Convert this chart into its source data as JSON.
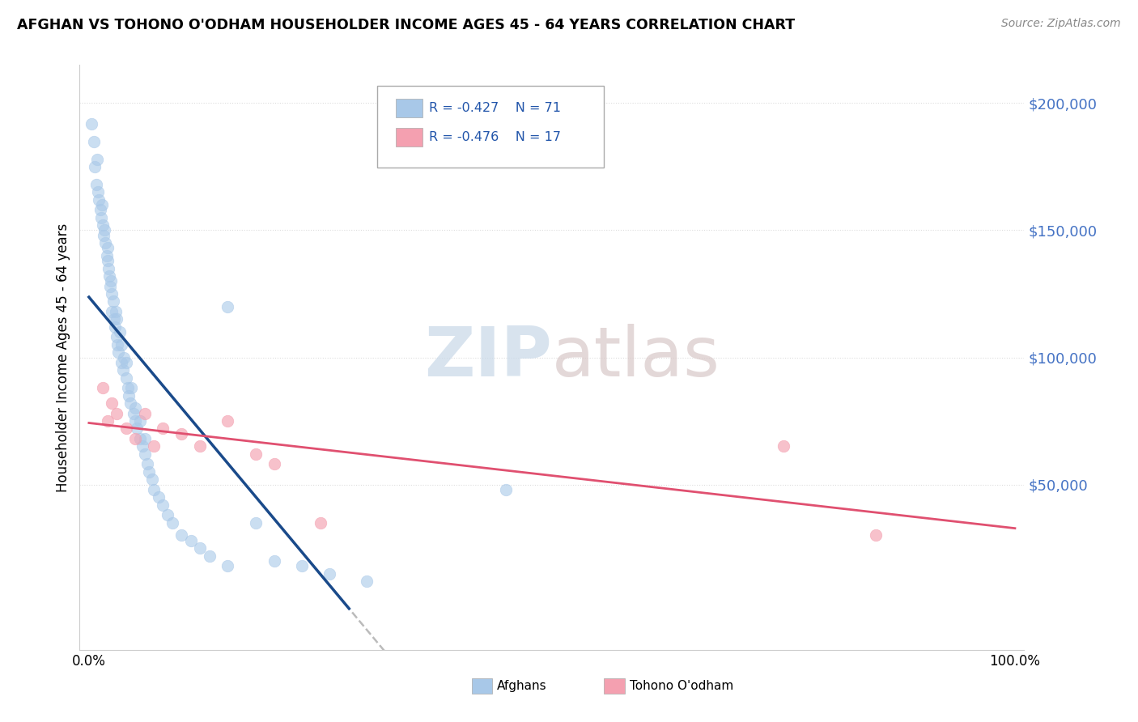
{
  "title": "AFGHAN VS TOHONO O'ODHAM HOUSEHOLDER INCOME AGES 45 - 64 YEARS CORRELATION CHART",
  "source": "Source: ZipAtlas.com",
  "ylabel": "Householder Income Ages 45 - 64 years",
  "legend_label1": "Afghans",
  "legend_label2": "Tohono O'odham",
  "R1": -0.427,
  "N1": 71,
  "R2": -0.476,
  "N2": 17,
  "bg_color": "#ffffff",
  "blue_color": "#a8c8e8",
  "pink_color": "#f4a0b0",
  "blue_line_color": "#1a4a8a",
  "pink_line_color": "#e05070",
  "grid_color": "#dddddd",
  "dot_size": 110,
  "blue_scatter_x": [
    0.3,
    0.5,
    0.6,
    0.8,
    0.9,
    1.0,
    1.1,
    1.2,
    1.3,
    1.4,
    1.5,
    1.6,
    1.7,
    1.8,
    1.9,
    2.0,
    2.0,
    2.1,
    2.2,
    2.3,
    2.4,
    2.5,
    2.5,
    2.6,
    2.7,
    2.8,
    2.9,
    3.0,
    3.0,
    3.1,
    3.2,
    3.3,
    3.5,
    3.5,
    3.7,
    3.8,
    4.0,
    4.0,
    4.2,
    4.3,
    4.5,
    4.6,
    4.8,
    5.0,
    5.0,
    5.2,
    5.5,
    5.5,
    5.8,
    6.0,
    6.0,
    6.3,
    6.5,
    6.8,
    7.0,
    7.5,
    8.0,
    8.5,
    9.0,
    10.0,
    11.0,
    12.0,
    13.0,
    15.0,
    18.0,
    20.0,
    23.0,
    26.0,
    30.0,
    45.0,
    15.0
  ],
  "blue_scatter_y": [
    192000,
    185000,
    175000,
    168000,
    178000,
    165000,
    162000,
    158000,
    155000,
    160000,
    152000,
    148000,
    150000,
    145000,
    140000,
    138000,
    143000,
    135000,
    132000,
    128000,
    130000,
    125000,
    118000,
    122000,
    115000,
    112000,
    118000,
    108000,
    115000,
    105000,
    102000,
    110000,
    98000,
    105000,
    95000,
    100000,
    92000,
    98000,
    88000,
    85000,
    82000,
    88000,
    78000,
    75000,
    80000,
    72000,
    68000,
    75000,
    65000,
    62000,
    68000,
    58000,
    55000,
    52000,
    48000,
    45000,
    42000,
    38000,
    35000,
    30000,
    28000,
    25000,
    22000,
    18000,
    35000,
    20000,
    18000,
    15000,
    12000,
    48000,
    120000
  ],
  "pink_scatter_x": [
    1.5,
    2.0,
    2.5,
    3.0,
    4.0,
    5.0,
    6.0,
    7.0,
    8.0,
    10.0,
    12.0,
    15.0,
    18.0,
    20.0,
    25.0,
    75.0,
    85.0
  ],
  "pink_scatter_y": [
    88000,
    75000,
    82000,
    78000,
    72000,
    68000,
    78000,
    65000,
    72000,
    70000,
    65000,
    75000,
    62000,
    58000,
    35000,
    65000,
    30000
  ]
}
